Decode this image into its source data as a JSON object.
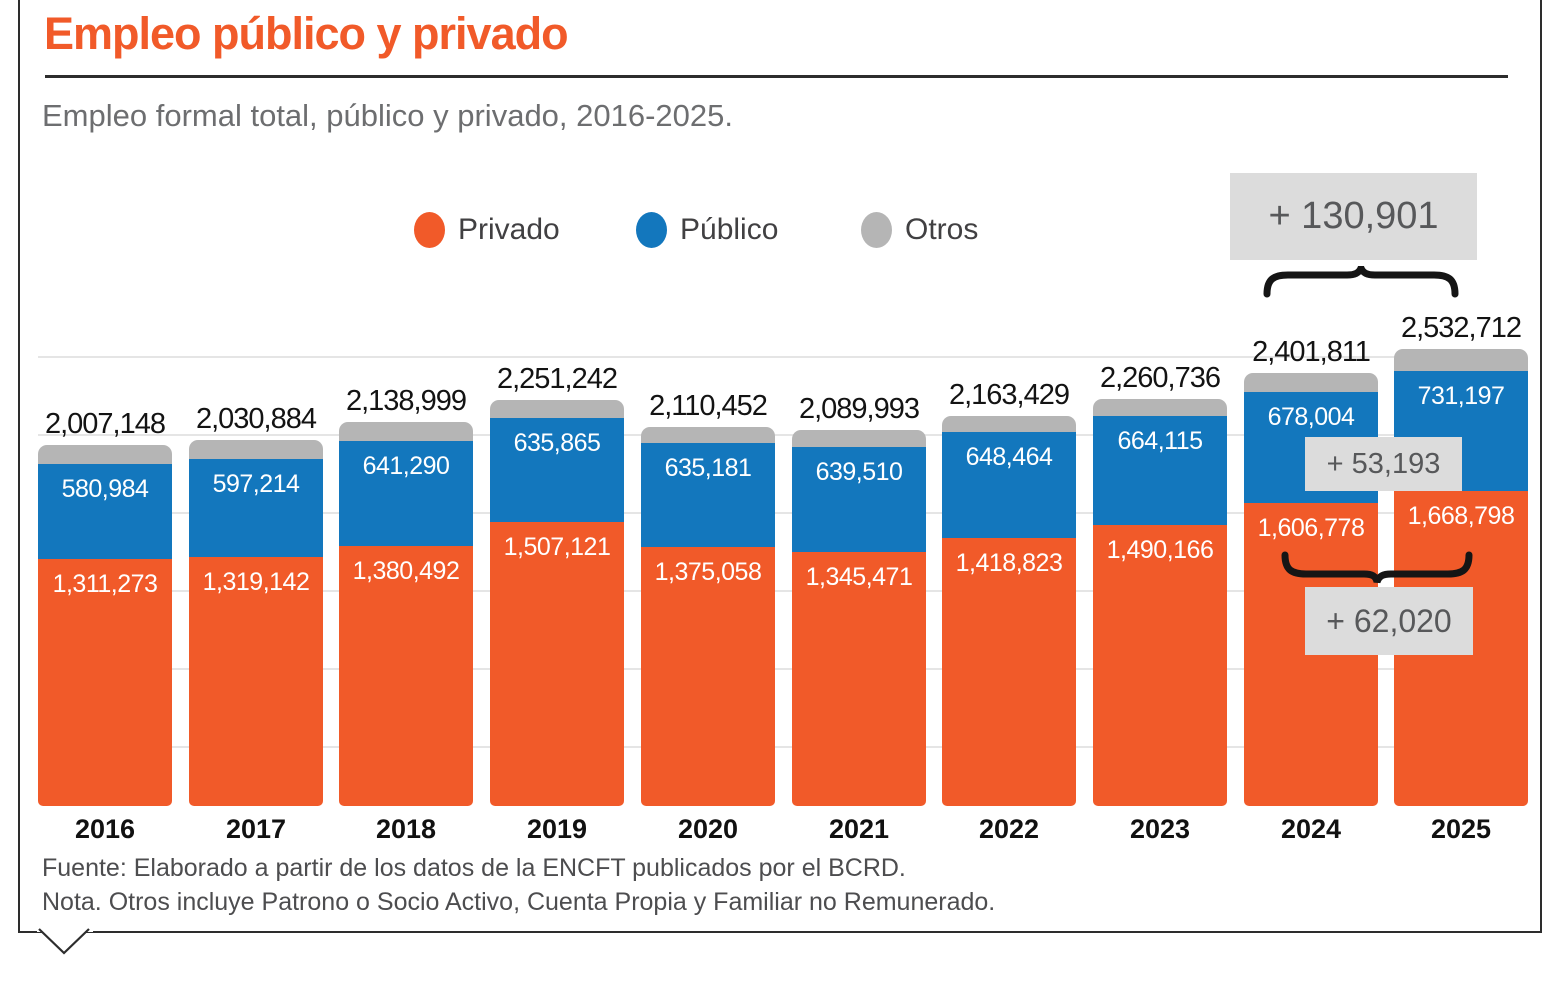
{
  "header": {
    "title": "Empleo público y privado",
    "subtitle": "Empleo formal total, público y privado, 2016-2025."
  },
  "legend": [
    {
      "label": "Privado",
      "color": "#F15A29"
    },
    {
      "label": "Público",
      "color": "#1377BD"
    },
    {
      "label": "Otros",
      "color": "#B5B5B5"
    }
  ],
  "chart_data": {
    "type": "bar",
    "stacked": true,
    "title": "Empleo público y privado",
    "subtitle": "Empleo formal total, público y privado, 2016-2025.",
    "categories": [
      "2016",
      "2017",
      "2018",
      "2019",
      "2020",
      "2021",
      "2022",
      "2023",
      "2024",
      "2025"
    ],
    "series": [
      {
        "name": "Privado",
        "color": "#F15A29",
        "labels_shown": true,
        "values": [
          1311273,
          1319142,
          1380492,
          1507121,
          1375058,
          1345471,
          1418823,
          1490166,
          1606778,
          1668798
        ]
      },
      {
        "name": "Público",
        "color": "#1377BD",
        "labels_shown": true,
        "values": [
          580984,
          597214,
          641290,
          635865,
          635181,
          639510,
          648464,
          664115,
          678004,
          731197
        ]
      },
      {
        "name": "Otros",
        "color": "#B5B5B5",
        "labels_shown": false,
        "derived_as_total_minus_other_series": true,
        "values": [
          114891,
          114528,
          117217,
          108256,
          100213,
          105012,
          96142,
          106455,
          117029,
          132717
        ]
      }
    ],
    "totals": [
      2007148,
      2030884,
      2138999,
      2251242,
      2110452,
      2089993,
      2163429,
      2260736,
      2401811,
      2532712
    ],
    "legend_position": "top",
    "grid": "horizontal-light",
    "annotations": {
      "total_increase_2024_2025": "+ 130,901",
      "publico_increase_2024_2025": "+ 53,193",
      "privado_increase_2024_2025": "+ 62,020"
    }
  },
  "footer": {
    "source": "Fuente: Elaborado a partir de los datos de la ENCFT publicados por el BCRD.",
    "note": "Nota. Otros incluye Patrono o Socio Activo, Cuenta Propia y Familiar no Remunerado."
  }
}
